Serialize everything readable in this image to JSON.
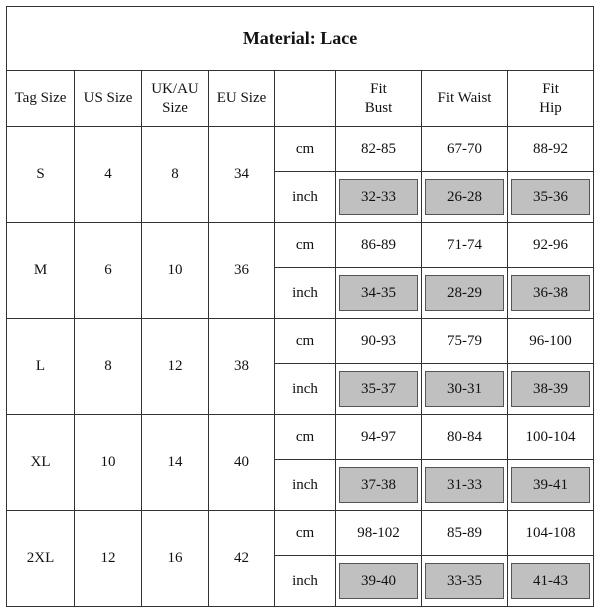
{
  "title": "Material: Lace",
  "headers": {
    "tag": "Tag Size",
    "us": "US Size",
    "uk": "UK/AU\nSize",
    "eu": "EU Size",
    "unit": "",
    "bust": "Fit\nBust",
    "waist": "Fit Waist",
    "hip": "Fit\nHip"
  },
  "sizes": [
    {
      "tag": "S",
      "us": "4",
      "uk": "8",
      "eu": "34",
      "cm": {
        "unit": "cm",
        "bust": "82-85",
        "waist": "67-70",
        "hip": "88-92"
      },
      "inch": {
        "unit": "inch",
        "bust": "32-33",
        "waist": "26-28",
        "hip": "35-36"
      }
    },
    {
      "tag": "M",
      "us": "6",
      "uk": "10",
      "eu": "36",
      "cm": {
        "unit": "cm",
        "bust": "86-89",
        "waist": "71-74",
        "hip": "92-96"
      },
      "inch": {
        "unit": "inch",
        "bust": "34-35",
        "waist": "28-29",
        "hip": "36-38"
      }
    },
    {
      "tag": "L",
      "us": "8",
      "uk": "12",
      "eu": "38",
      "cm": {
        "unit": "cm",
        "bust": "90-93",
        "waist": "75-79",
        "hip": "96-100"
      },
      "inch": {
        "unit": "inch",
        "bust": "35-37",
        "waist": "30-31",
        "hip": "38-39"
      }
    },
    {
      "tag": "XL",
      "us": "10",
      "uk": "14",
      "eu": "40",
      "cm": {
        "unit": "cm",
        "bust": "94-97",
        "waist": "80-84",
        "hip": "100-104"
      },
      "inch": {
        "unit": "inch",
        "bust": "37-38",
        "waist": "31-33",
        "hip": "39-41"
      }
    },
    {
      "tag": "2XL",
      "us": "12",
      "uk": "16",
      "eu": "42",
      "cm": {
        "unit": "cm",
        "bust": "98-102",
        "waist": "85-89",
        "hip": "104-108"
      },
      "inch": {
        "unit": "inch",
        "bust": "39-40",
        "waist": "33-35",
        "hip": "41-43"
      }
    }
  ],
  "colors": {
    "shade": "#c0c0c0",
    "border": "#333333"
  }
}
